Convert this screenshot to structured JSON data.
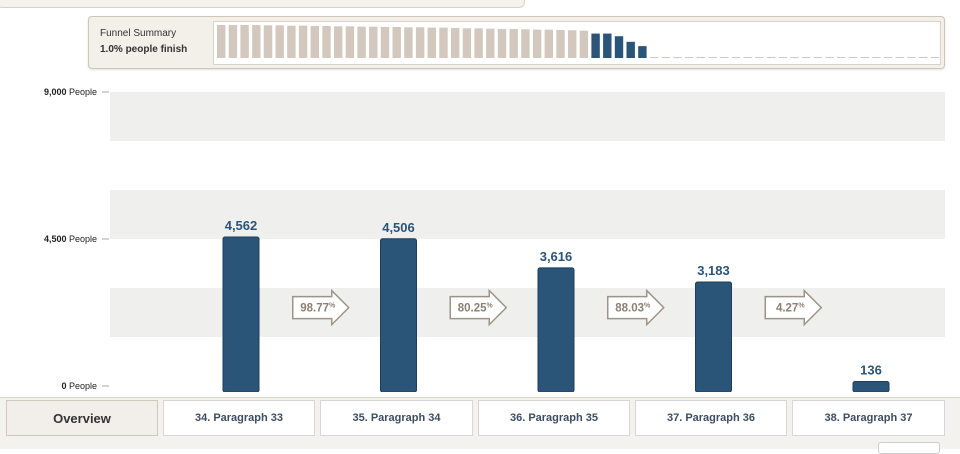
{
  "funnel_summary": {
    "title": "Funnel Summary",
    "subtitle": "1.0% people finish",
    "spark_values": [
      100,
      100,
      100,
      100,
      99,
      99,
      98,
      98,
      97,
      97,
      96,
      96,
      95,
      95,
      94,
      94,
      93,
      93,
      92,
      92,
      91,
      90,
      90,
      89,
      88,
      88,
      87,
      86,
      86,
      85,
      84,
      83,
      74,
      74,
      66,
      49,
      36,
      3,
      3,
      3,
      3,
      3,
      3,
      3,
      3,
      3,
      3,
      3,
      3,
      3,
      3,
      3,
      3,
      3,
      3,
      3,
      3,
      3,
      3,
      3,
      3,
      3
    ],
    "spark_highlight_start": 32,
    "spark_highlight_end": 36,
    "colors": {
      "normal": "#d3c8bd",
      "highlight": "#2a5478",
      "empty": "#cfc8be"
    }
  },
  "chart_data": {
    "type": "bar",
    "title": "",
    "xlabel": "",
    "ylabel": "",
    "ylim": [
      0,
      9000
    ],
    "y_ticks": [
      {
        "value": 9000,
        "label": "9,000 People"
      },
      {
        "value": 4500,
        "label": "4,500 People"
      },
      {
        "value": 0,
        "label": "0 People"
      }
    ],
    "grid_bands": true,
    "categories": [
      "34. Paragraph 33",
      "35. Paragraph 34",
      "36. Paragraph 35",
      "37. Paragraph 36",
      "38. Paragraph 37"
    ],
    "values": [
      4562,
      4506,
      3616,
      3183,
      136
    ],
    "value_labels": [
      "4,562",
      "4,506",
      "3,616",
      "3,183",
      "136"
    ],
    "conversion_rates": [
      "98.77",
      "80.25",
      "88.03",
      "4.27"
    ],
    "percent_symbol": "%",
    "bar_color": "#2a5478"
  },
  "tabs": {
    "overview_label": "Overview",
    "steps": [
      "34. Paragraph 33",
      "35. Paragraph 34",
      "36. Paragraph 35",
      "37. Paragraph 36",
      "38. Paragraph 37"
    ]
  }
}
